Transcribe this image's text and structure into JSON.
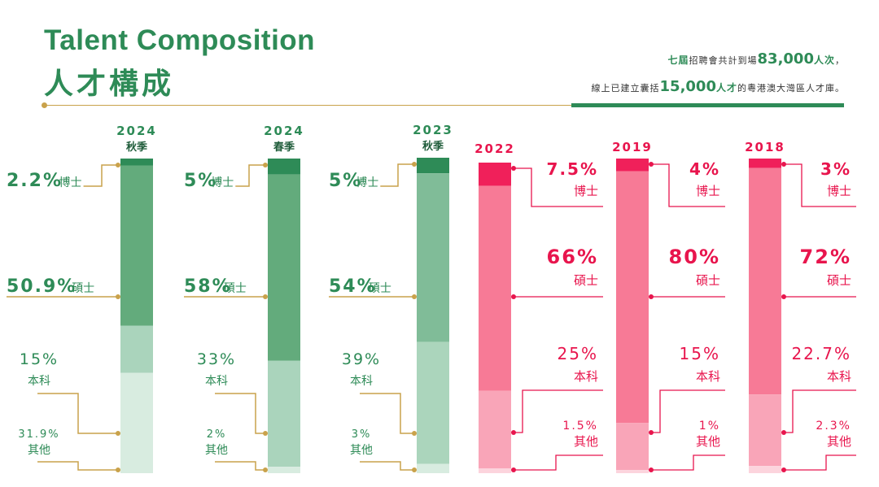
{
  "header": {
    "title_en": "Talent Composition",
    "title_zh": "人才構成",
    "stat1": {
      "prefix": "七屆",
      "mid": "招聘會共計到場",
      "value": "83,000",
      "suffix": "人次",
      "end": "，"
    },
    "stat2": {
      "prefix": "線上已建立囊括",
      "value": "15,000",
      "suffix": "人才",
      "end": "的粵港澳大灣區人才庫。"
    }
  },
  "colors": {
    "green_bands": [
      "#2e8b57",
      "#63ab7c",
      "#aad4bc",
      "#d8ece0"
    ],
    "green_bands_2023": [
      "#2e8b57",
      "#80bc98",
      "#abd5bc",
      "#d8ece0"
    ],
    "pink_bands": [
      "#f0205a",
      "#f77a96",
      "#f9a5b8",
      "#fcd4dd"
    ],
    "green_text": "#2e8b57",
    "pink_text": "#e8154d",
    "gold_leader": "#c9a24b"
  },
  "chart_data": [
    {
      "type": "bar",
      "year": "2024",
      "season": "秋季",
      "stacked": true,
      "categories": [
        "博士",
        "碩士",
        "本科",
        "其他"
      ],
      "values": [
        2.2,
        50.9,
        15,
        31.9
      ],
      "labels": [
        "2.2%",
        "50.9%",
        "15%",
        "31.9%"
      ]
    },
    {
      "type": "bar",
      "year": "2024",
      "season": "春季",
      "stacked": true,
      "categories": [
        "博士",
        "碩士",
        "本科",
        "其他"
      ],
      "values": [
        5,
        58,
        33,
        2
      ],
      "labels": [
        "5%",
        "58%",
        "33%",
        "2%"
      ]
    },
    {
      "type": "bar",
      "year": "2023",
      "season": "秋季",
      "stacked": true,
      "categories": [
        "博士",
        "碩士",
        "本科",
        "其他"
      ],
      "values": [
        5,
        54,
        39,
        3
      ],
      "labels": [
        "5%",
        "54%",
        "39%",
        "3%"
      ]
    },
    {
      "type": "bar",
      "year": "2022",
      "season": "",
      "stacked": true,
      "categories": [
        "博士",
        "碩士",
        "本科",
        "其他"
      ],
      "values": [
        7.5,
        66,
        25,
        1.5
      ],
      "labels": [
        "7.5%",
        "66%",
        "25%",
        "1.5%"
      ]
    },
    {
      "type": "bar",
      "year": "2019",
      "season": "",
      "stacked": true,
      "categories": [
        "博士",
        "碩士",
        "本科",
        "其他"
      ],
      "values": [
        4,
        80,
        15,
        1
      ],
      "labels": [
        "4%",
        "80%",
        "15%",
        "1%"
      ]
    },
    {
      "type": "bar",
      "year": "2018",
      "season": "",
      "stacked": true,
      "categories": [
        "博士",
        "碩士",
        "本科",
        "其他"
      ],
      "values": [
        3,
        72,
        22.7,
        2.3
      ],
      "labels": [
        "3%",
        "72%",
        "22.7%",
        "2.3%"
      ]
    }
  ]
}
